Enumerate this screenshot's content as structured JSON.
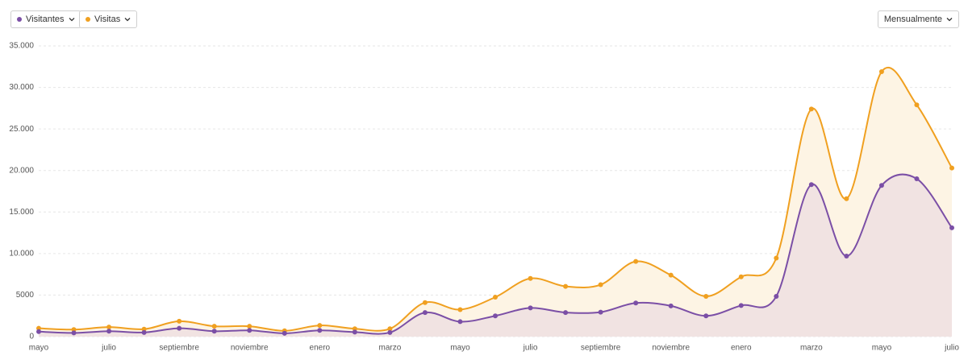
{
  "chart_data": {
    "type": "line",
    "period_selector": "Mensualmente",
    "categories": [
      "mayo",
      null,
      "julio",
      null,
      "septiembre",
      null,
      "noviembre",
      null,
      "enero",
      null,
      "marzo",
      null,
      "mayo",
      null,
      "julio",
      null,
      "septiembre",
      null,
      "noviembre",
      null,
      "enero",
      null,
      "marzo",
      null,
      "mayo",
      null,
      "julio"
    ],
    "series": [
      {
        "name": "Visitantes",
        "color": "#7b4fa6",
        "area_color": "#f1e3e2",
        "values": [
          600,
          450,
          650,
          500,
          1000,
          650,
          750,
          400,
          750,
          550,
          500,
          2900,
          1800,
          2500,
          3450,
          2900,
          2950,
          4050,
          3700,
          2500,
          3750,
          4850,
          18300,
          9700,
          18200,
          19000,
          13100
        ]
      },
      {
        "name": "Visitas",
        "color": "#f0a020",
        "area_color": "#fdf4e4",
        "values": [
          1000,
          850,
          1150,
          900,
          1850,
          1250,
          1250,
          700,
          1350,
          950,
          950,
          4100,
          3250,
          4750,
          7000,
          6050,
          6250,
          9050,
          7400,
          4850,
          7200,
          9450,
          27400,
          16600,
          31900,
          27900,
          20300
        ]
      }
    ],
    "ylim": [
      0,
      35000
    ],
    "yticks": [
      0,
      5000,
      {
        "value": 10000,
        "label": "10.000"
      },
      {
        "value": 15000,
        "label": "15.000"
      },
      {
        "value": 20000,
        "label": "20.000"
      },
      {
        "value": 25000,
        "label": "25.000"
      },
      {
        "value": 30000,
        "label": "30.000"
      },
      {
        "value": 35000,
        "label": "35.000"
      }
    ],
    "grid": true
  }
}
